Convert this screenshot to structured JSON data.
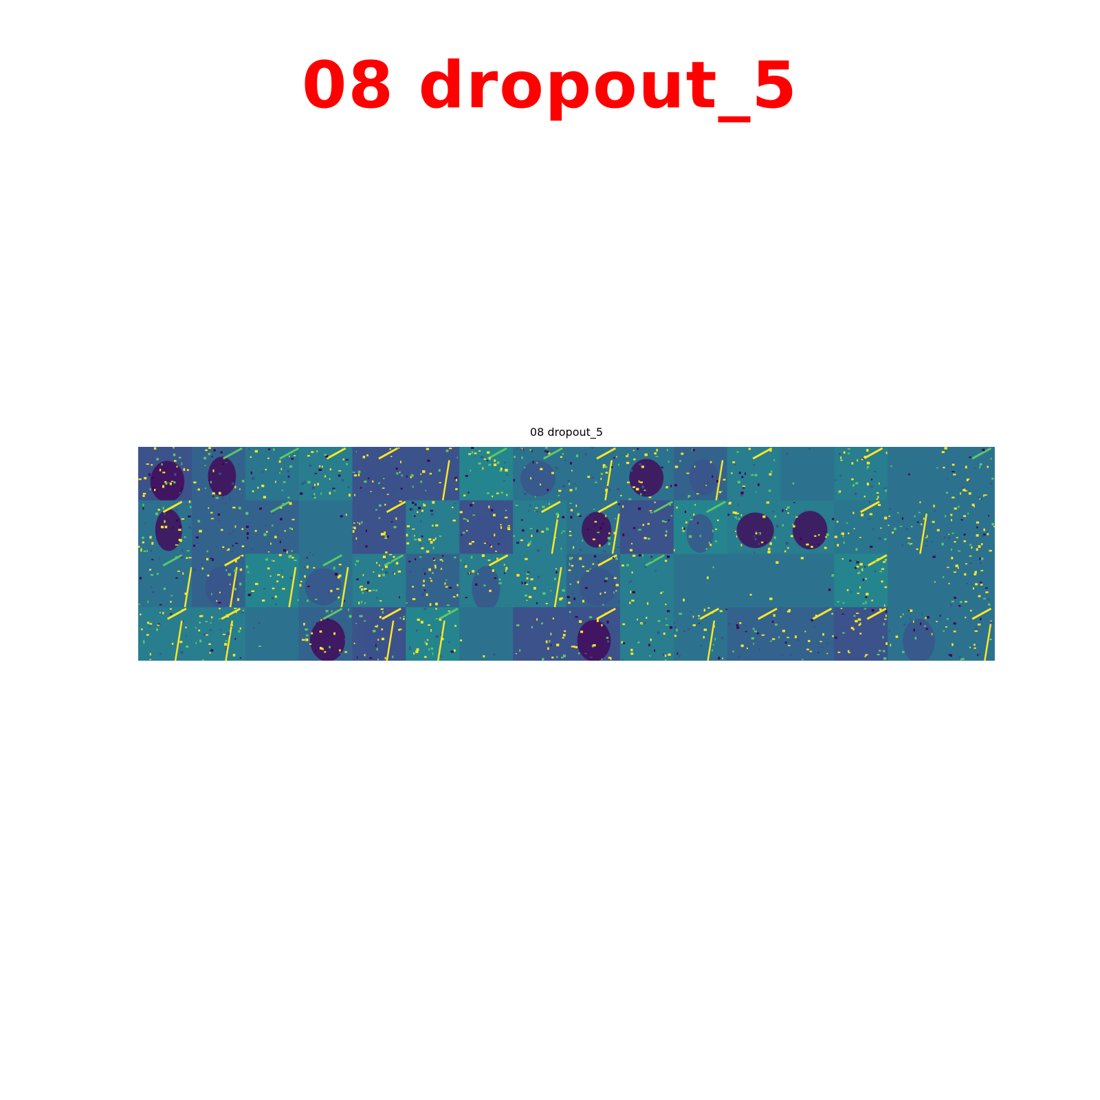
{
  "header": {
    "title": "08 dropout_5"
  },
  "figure": {
    "title": "08 dropout_5",
    "rows": 4,
    "cols": 16,
    "colormap": "viridis",
    "colors": {
      "title_red": "#ff0000",
      "low": "#440154",
      "mid_low": "#3b528b",
      "mid": "#21908d",
      "mid_high": "#5dc963",
      "high": "#fde725"
    }
  }
}
